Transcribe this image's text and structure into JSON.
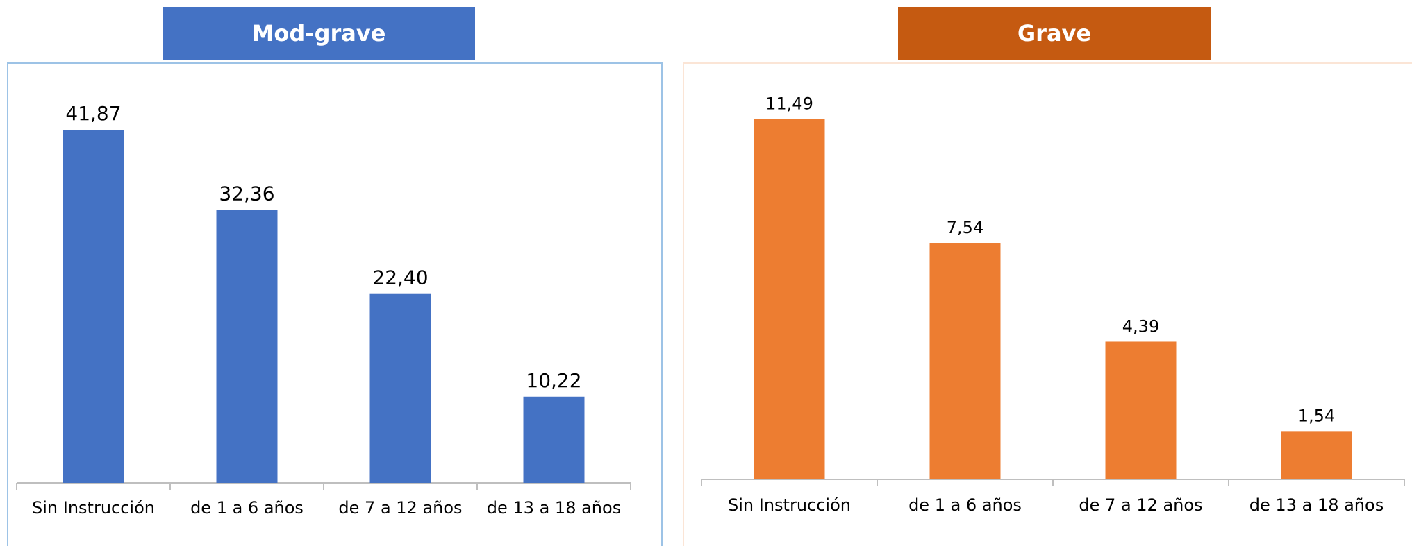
{
  "chart_data": [
    {
      "type": "bar",
      "title": "Mod-grave",
      "categories": [
        "Sin Instrucción",
        "de 1 a 6 años",
        "de 7 a 12 años",
        "de 13 a 18 años"
      ],
      "values": [
        41.87,
        32.36,
        22.4,
        10.22
      ],
      "value_labels": [
        "41,87",
        "32,36",
        "22,40",
        "10,22"
      ],
      "ylim": [
        0,
        45
      ],
      "grid": false,
      "legend": "none",
      "color": "#4472c4",
      "header_color": "#4472c4"
    },
    {
      "type": "bar",
      "title": "Grave",
      "categories": [
        "Sin Instrucción",
        "de 1 a 6 años",
        "de 7 a 12 años",
        "de 13 a 18 años"
      ],
      "values": [
        11.49,
        7.54,
        4.39,
        1.54
      ],
      "value_labels": [
        "11,49",
        "7,54",
        "4,39",
        "1,54"
      ],
      "ylim": [
        0,
        13.4
      ],
      "grid": false,
      "legend": "none",
      "color": "#ed7d31",
      "header_color": "#c55a11"
    }
  ]
}
